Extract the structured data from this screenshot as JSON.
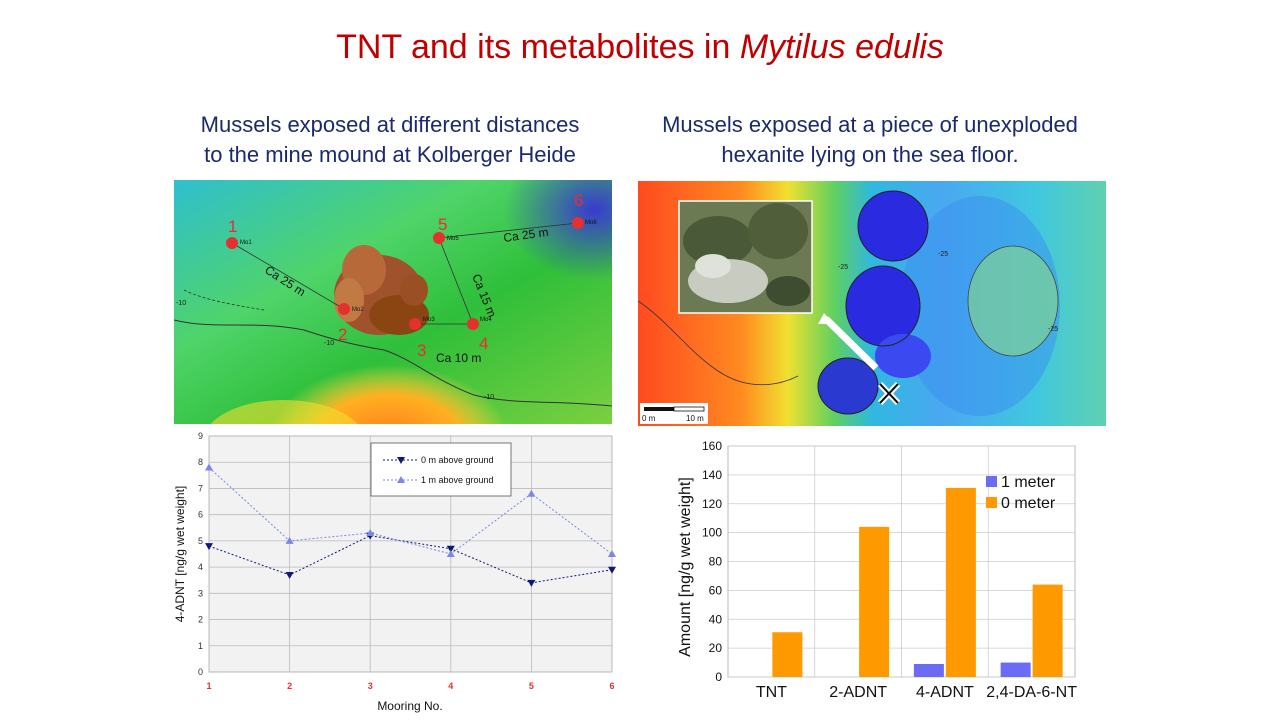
{
  "colors": {
    "title": "#c00000",
    "subtitle": "#1a2a6c",
    "marker": "#e53030",
    "line_series_0": "#0d1a7a",
    "line_series_1": "#7a86e8",
    "bar_1m": "#6b6bf5",
    "bar_0m": "#ff9900"
  },
  "slide": {
    "title_main": "TNT and its metabolites in ",
    "title_species": "Mytilus edulis",
    "left_subtitle": [
      "Mussels exposed at different distances",
      "to the mine mound at Kolberger Heide"
    ],
    "right_subtitle": [
      "Mussels exposed at a piece of unexploded",
      "hexanite lying on the sea floor."
    ]
  },
  "left_map": {
    "moorings": [
      {
        "number": "1",
        "label": "Mo1"
      },
      {
        "number": "2",
        "label": "Mo2"
      },
      {
        "number": "3",
        "label": "Mo3"
      },
      {
        "number": "4",
        "label": "Mo4"
      },
      {
        "number": "5",
        "label": "Mo5"
      },
      {
        "number": "6",
        "label": "Mo6"
      }
    ],
    "distance_labels": [
      "Ca 25 m",
      "Ca 25 m",
      "Ca 15 m",
      "Ca 10 m"
    ],
    "contours": [
      "-10",
      "-10",
      "-10"
    ]
  },
  "right_map": {
    "scale_labels": [
      "0 m",
      "10 m"
    ],
    "contours": [
      "-25",
      "-25",
      "-25"
    ]
  },
  "chart_data": [
    {
      "type": "line",
      "xlabel": "Mooring No.",
      "ylabel": "4-ADNT [ng/g wet weight]",
      "x": [
        1,
        2,
        3,
        4,
        5,
        6
      ],
      "ylim": [
        0,
        9
      ],
      "yticks": [
        0,
        1,
        2,
        3,
        4,
        5,
        6,
        7,
        8,
        9
      ],
      "grid": true,
      "legend_position": "top-right",
      "series": [
        {
          "name": "0 m above ground",
          "values": [
            4.8,
            3.7,
            5.2,
            4.7,
            3.4,
            3.9
          ]
        },
        {
          "name": "1 m above ground",
          "values": [
            7.8,
            5.0,
            5.3,
            4.5,
            6.8,
            4.5
          ]
        }
      ]
    },
    {
      "type": "bar",
      "ylabel": "Amount [ng/g wet weight]",
      "categories": [
        "TNT",
        "2-ADNT",
        "4-ADNT",
        "2,4-DA-6-NT"
      ],
      "ylim": [
        0,
        160
      ],
      "yticks": [
        0,
        20,
        40,
        60,
        80,
        100,
        120,
        140,
        160
      ],
      "grid": true,
      "legend_position": "top-right",
      "series": [
        {
          "name": "1 meter",
          "values": [
            0,
            0,
            9,
            10
          ]
        },
        {
          "name": "0 meter",
          "values": [
            31,
            104,
            131,
            64
          ]
        }
      ]
    }
  ]
}
